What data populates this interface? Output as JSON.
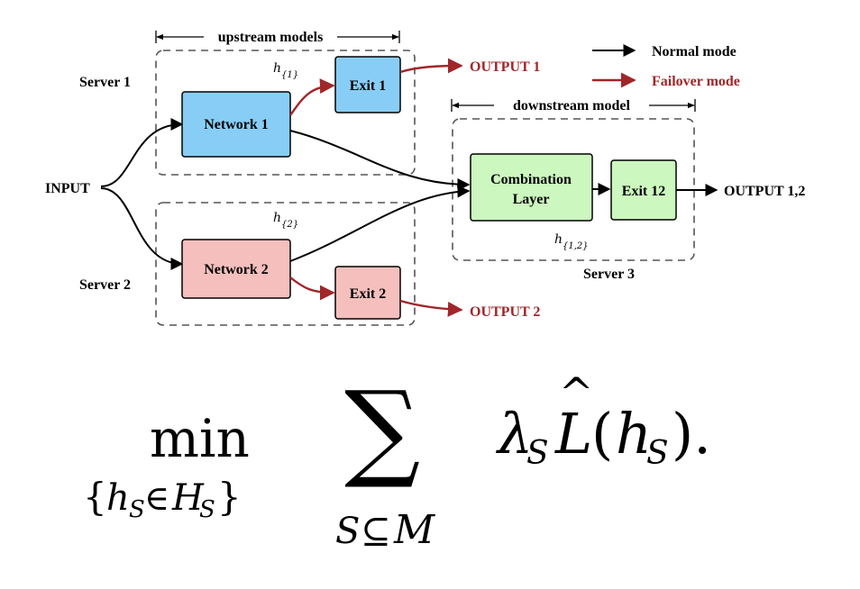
{
  "nodes": {
    "network1": "Network 1",
    "network2": "Network 2",
    "exit1": "Exit 1",
    "exit2": "Exit 2",
    "exit12": "Exit 12",
    "combination_line1": "Combination",
    "combination_line2": "Layer"
  },
  "labels": {
    "input": "INPUT",
    "output1": "OUTPUT 1",
    "output2": "OUTPUT 2",
    "output12": "OUTPUT 1,2",
    "server1": "Server 1",
    "server2": "Server 2",
    "server3": "Server 3",
    "upstream": "upstream models",
    "downstream": "downstream model"
  },
  "hidden_labels": {
    "h1_base": "h",
    "h1_sub": "{1}",
    "h2_base": "h",
    "h2_sub": "{2}",
    "h12_base": "h",
    "h12_sub": "{1,2}"
  },
  "legend": {
    "normal": "Normal mode",
    "failover": "Failover mode"
  },
  "colors": {
    "blue_fill": "#88cdf6",
    "red_fill": "#f4bfbd",
    "green_fill": "#ccf7bf",
    "failover_red": "#a0262a",
    "dashed_gray": "#555555"
  },
  "formula": {
    "min": "min",
    "constraint_open": "{",
    "constraint_h": "h",
    "constraint_s": "S",
    "constraint_in": "∈",
    "constraint_H": "H",
    "constraint_Hs": "S",
    "constraint_close": "}",
    "sum": "∑",
    "sum_S": "S",
    "sum_subseteq": "⊆",
    "sum_M": "M",
    "lambda": "λ",
    "lambda_s": "S",
    "L": "L",
    "hat": "^",
    "paren_open": "(",
    "h": "h",
    "h_s": "S",
    "paren_close": ").",
    "period": ""
  }
}
